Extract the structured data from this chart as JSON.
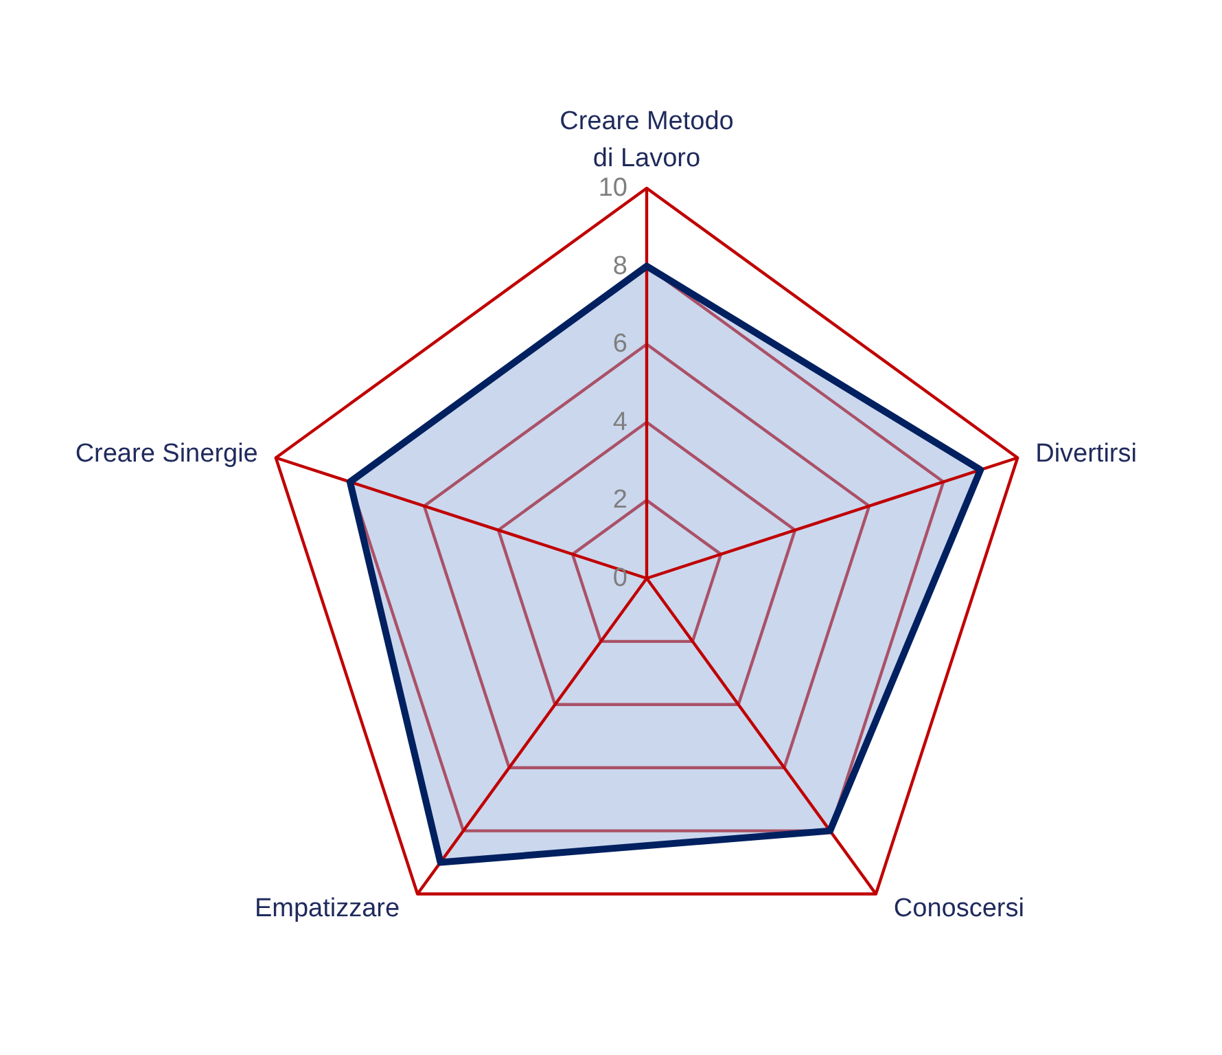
{
  "chart_data": {
    "type": "radar",
    "categories": [
      "Creare Metodo\ndi Lavoro",
      "Divertirsi",
      "Conoscersi",
      "Empatizzare",
      "Creare Sinergie"
    ],
    "series": [
      {
        "color": "#002060",
        "values": [
          8,
          9,
          8,
          9,
          8
        ]
      }
    ],
    "ylim": [
      0,
      10
    ],
    "yticks": [
      0,
      2,
      4,
      6,
      8,
      10
    ],
    "grid": true
  }
}
